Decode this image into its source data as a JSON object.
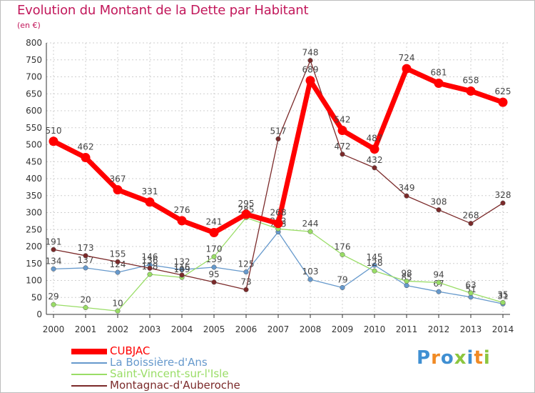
{
  "header": {
    "title": "Evolution du Montant de la Dette par Habitant",
    "unit": "(en €)"
  },
  "logo": {
    "text": "Proxiti"
  },
  "chart_data": {
    "type": "line",
    "x": [
      2000,
      2001,
      2002,
      2003,
      2004,
      2005,
      2006,
      2007,
      2008,
      2009,
      2010,
      2011,
      2012,
      2013,
      2014
    ],
    "ylim": [
      0,
      800
    ],
    "yticks": [
      0,
      50,
      100,
      150,
      200,
      250,
      300,
      350,
      400,
      450,
      500,
      550,
      600,
      650,
      700,
      750,
      800
    ],
    "grid": true,
    "legend": "bottom-left",
    "series": [
      {
        "name": "CUBJAC",
        "color": "#ff0000",
        "values": [
          510,
          462,
          367,
          331,
          276,
          241,
          295,
          268,
          689,
          542,
          487,
          724,
          681,
          658,
          625
        ]
      },
      {
        "name": "La Boissière-d'Ans",
        "color": "#6699cc",
        "values": [
          134,
          137,
          124,
          146,
          132,
          139,
          125,
          243,
          103,
          79,
          145,
          85,
          67,
          51,
          31
        ]
      },
      {
        "name": "Saint-Vincent-sur-l'Isle",
        "color": "#99dd66",
        "values": [
          29,
          20,
          10,
          118,
          109,
          170,
          285,
          252,
          244,
          176,
          128,
          98,
          94,
          63,
          35
        ]
      },
      {
        "name": "Montagnac-d'Auberoche",
        "color": "#7b2a2a",
        "values": [
          191,
          173,
          155,
          136,
          116,
          95,
          73,
          517,
          748,
          472,
          432,
          349,
          308,
          268,
          328
        ]
      }
    ]
  }
}
